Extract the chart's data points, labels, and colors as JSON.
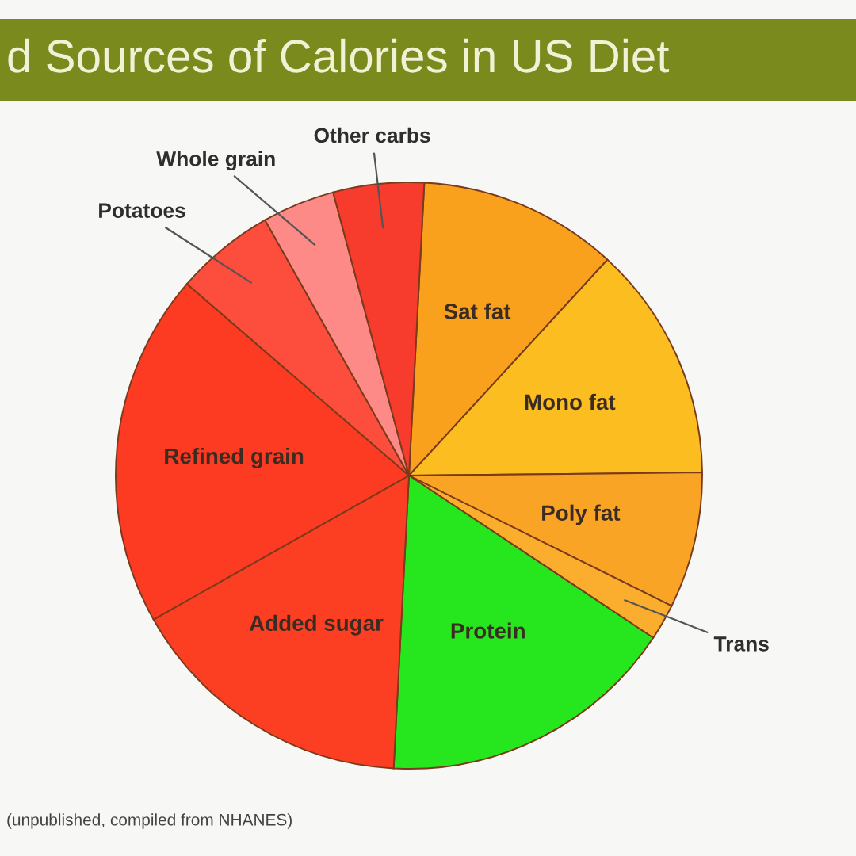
{
  "chart_data": {
    "type": "pie",
    "title": "d Sources of Calories in US Diet",
    "categories": [
      "Sat fat",
      "Mono fat",
      "Poly fat",
      "Trans",
      "Protein",
      "Added sugar",
      "Refined grain",
      "Potatoes",
      "Whole grain",
      "Other carbs"
    ],
    "values": [
      11,
      13,
      7.5,
      2,
      16.5,
      16,
      19.5,
      5.5,
      4,
      5
    ],
    "colors": [
      "#f9a01c",
      "#fbbd20",
      "#f9a424",
      "#fbae2e",
      "#26e61e",
      "#fc3f22",
      "#fc3b22",
      "#fd4d3c",
      "#fd8a86",
      "#f73b2c"
    ],
    "annotations": [
      "(unpublished, compiled from NHANES)"
    ]
  }
}
